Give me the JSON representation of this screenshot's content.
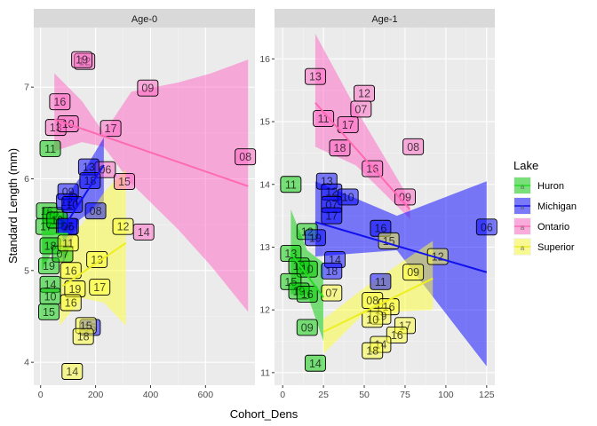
{
  "chart_data": {
    "type": "scatter",
    "xlabel": "Cohort_Dens",
    "ylabel": "Standard Length  (mm)",
    "legend": {
      "title": "Lake",
      "position": "right",
      "entries": [
        "Huron",
        "Michigan",
        "Ontario",
        "Superior"
      ],
      "key_glyph": "a"
    },
    "colors": {
      "Huron": "#00cc00",
      "Michigan": "#0000ff",
      "Ontario": "#ff66c4",
      "Superior": "#ffff33"
    },
    "line_colors": {
      "Huron": "#22dd22",
      "Michigan": "#1111ee",
      "Ontario": "#ff69b4",
      "Superior": "#eeee22"
    },
    "panels": [
      {
        "title": "Age-0",
        "xlim": [
          -25,
          780
        ],
        "ylim": [
          3.75,
          7.65
        ],
        "xticks": [
          0,
          200,
          400,
          600
        ],
        "yticks": [
          4,
          5,
          6,
          7
        ],
        "ribbons": [
          {
            "lake": "Ontario",
            "upper": [
              [
                50,
                7.15
              ],
              [
                150,
                6.85
              ],
              [
                230,
                6.5
              ],
              [
                330,
                6.95
              ],
              [
                500,
                7.05
              ],
              [
                620,
                7.15
              ],
              [
                755,
                7.3
              ]
            ],
            "lower": [
              [
                50,
                6.3
              ],
              [
                150,
                6.4
              ],
              [
                230,
                6.35
              ],
              [
                330,
                5.95
              ],
              [
                500,
                5.45
              ],
              [
                620,
                5.05
              ],
              [
                755,
                4.55
              ]
            ]
          },
          {
            "lake": "Michigan",
            "upper": [
              [
                80,
                5.75
              ],
              [
                140,
                6.0
              ],
              [
                230,
                6.45
              ]
            ],
            "lower": [
              [
                80,
                5.05
              ],
              [
                140,
                5.55
              ],
              [
                230,
                5.75
              ]
            ]
          },
          {
            "lake": "Huron",
            "upper": [
              [
                5,
                5.7
              ],
              [
                50,
                5.62
              ],
              [
                100,
                5.6
              ]
            ],
            "lower": [
              [
                5,
                5.0
              ],
              [
                50,
                5.25
              ],
              [
                100,
                5.15
              ]
            ]
          },
          {
            "lake": "Superior",
            "upper": [
              [
                70,
                5.3
              ],
              [
                150,
                5.5
              ],
              [
                230,
                5.85
              ],
              [
                310,
                6.1
              ]
            ],
            "lower": [
              [
                70,
                4.4
              ],
              [
                150,
                4.7
              ],
              [
                230,
                4.65
              ],
              [
                310,
                4.4
              ]
            ]
          }
        ],
        "lines": [
          {
            "lake": "Ontario",
            "x": [
              50,
              755
            ],
            "y": [
              6.65,
              5.92
            ]
          },
          {
            "lake": "Michigan",
            "x": [
              80,
              230
            ],
            "y": [
              5.45,
              6.15
            ]
          },
          {
            "lake": "Huron",
            "x": [
              5,
              100
            ],
            "y": [
              5.4,
              5.4
            ]
          },
          {
            "lake": "Superior",
            "x": [
              80,
              310
            ],
            "y": [
              4.83,
              5.3
            ]
          }
        ],
        "points": [
          {
            "lake": "Ontario",
            "label": "12",
            "x": 160,
            "y": 7.28
          },
          {
            "lake": "Ontario",
            "label": "19",
            "x": 150,
            "y": 7.3
          },
          {
            "lake": "Ontario",
            "label": "09",
            "x": 390,
            "y": 6.99
          },
          {
            "lake": "Ontario",
            "label": "16",
            "x": 70,
            "y": 6.84
          },
          {
            "lake": "Ontario",
            "label": "13",
            "x": 55,
            "y": 6.56
          },
          {
            "lake": "Ontario",
            "label": "10",
            "x": 100,
            "y": 6.6
          },
          {
            "lake": "Ontario",
            "label": "17",
            "x": 255,
            "y": 6.55
          },
          {
            "lake": "Ontario",
            "label": "08",
            "x": 745,
            "y": 6.24
          },
          {
            "lake": "Ontario",
            "label": "06",
            "x": 235,
            "y": 6.1
          },
          {
            "lake": "Ontario",
            "label": "15",
            "x": 305,
            "y": 5.97
          },
          {
            "lake": "Ontario",
            "label": "14",
            "x": 375,
            "y": 5.42
          },
          {
            "lake": "Huron",
            "label": "11",
            "x": 35,
            "y": 6.33
          },
          {
            "lake": "Huron",
            "label": "16",
            "x": 22,
            "y": 5.65
          },
          {
            "lake": "Huron",
            "label": "12",
            "x": 45,
            "y": 5.6
          },
          {
            "lake": "Huron",
            "label": "17",
            "x": 20,
            "y": 5.48
          },
          {
            "lake": "Huron",
            "label": "13",
            "x": 60,
            "y": 5.55
          },
          {
            "lake": "Huron",
            "label": "18",
            "x": 35,
            "y": 5.27
          },
          {
            "lake": "Huron",
            "label": "19",
            "x": 30,
            "y": 5.05
          },
          {
            "lake": "Huron",
            "label": "07",
            "x": 80,
            "y": 5.18
          },
          {
            "lake": "Huron",
            "label": "14",
            "x": 35,
            "y": 4.85
          },
          {
            "lake": "Huron",
            "label": "10",
            "x": 35,
            "y": 4.72
          },
          {
            "lake": "Huron",
            "label": "15",
            "x": 30,
            "y": 4.55
          },
          {
            "lake": "Michigan",
            "label": "13",
            "x": 175,
            "y": 6.13
          },
          {
            "lake": "Michigan",
            "label": "18",
            "x": 180,
            "y": 5.98
          },
          {
            "lake": "Michigan",
            "label": "09",
            "x": 100,
            "y": 5.86
          },
          {
            "lake": "Michigan",
            "label": "12",
            "x": 95,
            "y": 5.75
          },
          {
            "lake": "Michigan",
            "label": "10",
            "x": 115,
            "y": 5.72
          },
          {
            "lake": "Michigan",
            "label": "08",
            "x": 200,
            "y": 5.65
          },
          {
            "lake": "Michigan",
            "label": "07",
            "x": 95,
            "y": 5.48
          },
          {
            "lake": "Michigan",
            "label": "06",
            "x": 100,
            "y": 5.48
          },
          {
            "lake": "Michigan",
            "label": "15",
            "x": 180,
            "y": 4.38
          },
          {
            "lake": "Superior",
            "label": "12",
            "x": 300,
            "y": 5.48
          },
          {
            "lake": "Superior",
            "label": "11",
            "x": 100,
            "y": 5.3
          },
          {
            "lake": "Superior",
            "label": "13",
            "x": 205,
            "y": 5.12
          },
          {
            "lake": "Superior",
            "label": "16",
            "x": 110,
            "y": 5.0
          },
          {
            "lake": "Superior",
            "label": "19",
            "x": 125,
            "y": 4.8
          },
          {
            "lake": "Superior",
            "label": "17",
            "x": 215,
            "y": 4.82
          },
          {
            "lake": "Superior",
            "label": "16",
            "x": 110,
            "y": 4.65
          },
          {
            "lake": "Superior",
            "label": "15",
            "x": 165,
            "y": 4.4
          },
          {
            "lake": "Superior",
            "label": "18",
            "x": 155,
            "y": 4.28
          },
          {
            "lake": "Superior",
            "label": "14",
            "x": 115,
            "y": 3.9
          }
        ]
      },
      {
        "title": "Age-1",
        "xlim": [
          -5,
          130
        ],
        "ylim": [
          10.8,
          16.5
        ],
        "xticks": [
          0,
          25,
          50,
          75,
          100,
          125
        ],
        "yticks": [
          11,
          12,
          13,
          14,
          15,
          16
        ],
        "ribbons": [
          {
            "lake": "Ontario",
            "upper": [
              [
                20,
                16.4
              ],
              [
                45,
                15.2
              ],
              [
                78,
                13.75
              ]
            ],
            "lower": [
              [
                20,
                14.6
              ],
              [
                45,
                14.3
              ],
              [
                78,
                13.45
              ]
            ]
          },
          {
            "lake": "Michigan",
            "upper": [
              [
                20,
                14.05
              ],
              [
                70,
                13.5
              ],
              [
                125,
                14.05
              ]
            ],
            "lower": [
              [
                20,
                12.85
              ],
              [
                70,
                12.95
              ],
              [
                125,
                11.1
              ]
            ]
          },
          {
            "lake": "Huron",
            "upper": [
              [
                5,
                13.6
              ],
              [
                15,
                12.95
              ],
              [
                25,
                12.75
              ]
            ],
            "lower": [
              [
                5,
                12.25
              ],
              [
                15,
                12.25
              ],
              [
                25,
                11.5
              ]
            ]
          },
          {
            "lake": "Superior",
            "upper": [
              [
                25,
                11.85
              ],
              [
                50,
                12.35
              ],
              [
                92,
                13.1
              ]
            ],
            "lower": [
              [
                25,
                11.3
              ],
              [
                50,
                11.95
              ],
              [
                92,
                12.0
              ]
            ]
          }
        ],
        "lines": [
          {
            "lake": "Ontario",
            "x": [
              20,
              78
            ],
            "y": [
              15.3,
              13.6
            ]
          },
          {
            "lake": "Michigan",
            "x": [
              20,
              125
            ],
            "y": [
              13.4,
              12.6
            ]
          },
          {
            "lake": "Huron",
            "x": [
              5,
              25
            ],
            "y": [
              12.9,
              12.2
            ]
          },
          {
            "lake": "Superior",
            "x": [
              25,
              92
            ],
            "y": [
              11.65,
              12.5
            ]
          }
        ],
        "points": [
          {
            "lake": "Ontario",
            "label": "13",
            "x": 20,
            "y": 15.72
          },
          {
            "lake": "Ontario",
            "label": "12",
            "x": 50,
            "y": 15.45
          },
          {
            "lake": "Ontario",
            "label": "07",
            "x": 48,
            "y": 15.2
          },
          {
            "lake": "Ontario",
            "label": "11",
            "x": 25,
            "y": 15.05
          },
          {
            "lake": "Ontario",
            "label": "17",
            "x": 40,
            "y": 14.95
          },
          {
            "lake": "Ontario",
            "label": "08",
            "x": 80,
            "y": 14.6
          },
          {
            "lake": "Ontario",
            "label": "18",
            "x": 35,
            "y": 14.58
          },
          {
            "lake": "Ontario",
            "label": "16",
            "x": 55,
            "y": 14.25
          },
          {
            "lake": "Ontario",
            "label": "09",
            "x": 75,
            "y": 13.8
          },
          {
            "lake": "Huron",
            "label": "11",
            "x": 5,
            "y": 14.0
          },
          {
            "lake": "Huron",
            "label": "12",
            "x": 15,
            "y": 13.25
          },
          {
            "lake": "Huron",
            "label": "13",
            "x": 5,
            "y": 12.9
          },
          {
            "lake": "Huron",
            "label": "18",
            "x": 10,
            "y": 12.7
          },
          {
            "lake": "Huron",
            "label": "10",
            "x": 15,
            "y": 12.65
          },
          {
            "lake": "Huron",
            "label": "15",
            "x": 5,
            "y": 12.45
          },
          {
            "lake": "Huron",
            "label": "19",
            "x": 10,
            "y": 12.3
          },
          {
            "lake": "Huron",
            "label": "16",
            "x": 15,
            "y": 12.25
          },
          {
            "lake": "Huron",
            "label": "09",
            "x": 15,
            "y": 11.72
          },
          {
            "lake": "Huron",
            "label": "14",
            "x": 20,
            "y": 11.15
          },
          {
            "lake": "Michigan",
            "label": "13",
            "x": 27,
            "y": 14.05
          },
          {
            "lake": "Michigan",
            "label": "12",
            "x": 30,
            "y": 13.88
          },
          {
            "lake": "Michigan",
            "label": "10",
            "x": 40,
            "y": 13.8
          },
          {
            "lake": "Michigan",
            "label": "07",
            "x": 30,
            "y": 13.68
          },
          {
            "lake": "Michigan",
            "label": "17",
            "x": 30,
            "y": 13.5
          },
          {
            "lake": "Michigan",
            "label": "16",
            "x": 60,
            "y": 13.3
          },
          {
            "lake": "Michigan",
            "label": "06",
            "x": 125,
            "y": 13.32
          },
          {
            "lake": "Michigan",
            "label": "19",
            "x": 20,
            "y": 13.15
          },
          {
            "lake": "Michigan",
            "label": "14",
            "x": 32,
            "y": 12.8
          },
          {
            "lake": "Michigan",
            "label": "18",
            "x": 30,
            "y": 12.62
          },
          {
            "lake": "Michigan",
            "label": "11",
            "x": 60,
            "y": 12.45
          },
          {
            "lake": "Superior",
            "label": "15",
            "x": 65,
            "y": 13.1
          },
          {
            "lake": "Superior",
            "label": "12",
            "x": 95,
            "y": 12.85
          },
          {
            "lake": "Superior",
            "label": "09",
            "x": 80,
            "y": 12.6
          },
          {
            "lake": "Superior",
            "label": "07",
            "x": 30,
            "y": 12.27
          },
          {
            "lake": "Superior",
            "label": "08",
            "x": 55,
            "y": 12.15
          },
          {
            "lake": "Superior",
            "label": "16",
            "x": 65,
            "y": 12.05
          },
          {
            "lake": "Superior",
            "label": "19",
            "x": 60,
            "y": 11.9
          },
          {
            "lake": "Superior",
            "label": "10",
            "x": 55,
            "y": 11.85
          },
          {
            "lake": "Superior",
            "label": "17",
            "x": 75,
            "y": 11.75
          },
          {
            "lake": "Superior",
            "label": "16",
            "x": 70,
            "y": 11.6
          },
          {
            "lake": "Superior",
            "label": "14",
            "x": 60,
            "y": 11.45
          },
          {
            "lake": "Superior",
            "label": "18",
            "x": 55,
            "y": 11.35
          }
        ]
      }
    ]
  }
}
